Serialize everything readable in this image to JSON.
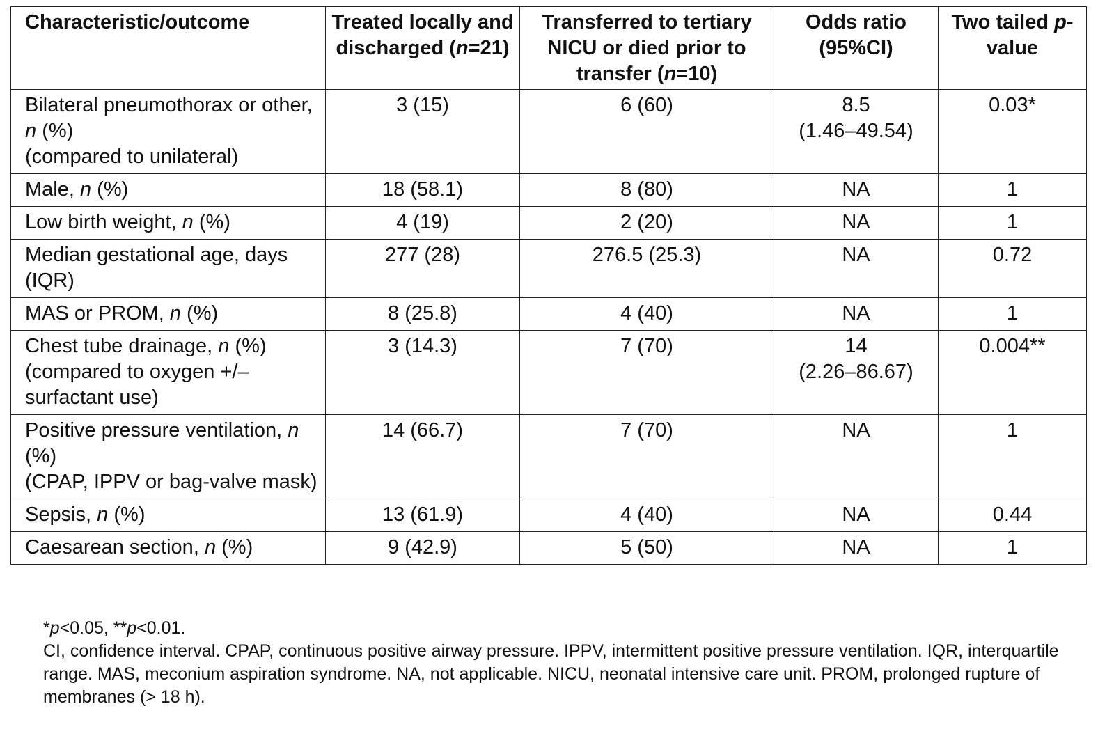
{
  "table": {
    "header": [
      [
        "Characteristic/outcome"
      ],
      [
        "Treated locally and discharged (",
        {
          "text": "n",
          "italic": true
        },
        "=21)"
      ],
      [
        "Transferred to tertiary NICU or died prior to transfer (",
        {
          "text": "n",
          "italic": true
        },
        "=10)"
      ],
      [
        "Odds ratio (95%CI)"
      ],
      [
        "Two tailed ",
        {
          "text": "p",
          "italic": true
        },
        "-value"
      ]
    ],
    "rows": [
      [
        [
          "Bilateral pneumothorax or other, ",
          {
            "text": "n",
            "italic": true
          },
          " (%)\n(compared to unilateral)"
        ],
        [
          "3 (15)"
        ],
        [
          "6 (60)"
        ],
        [
          "8.5\n(1.46–49.54)"
        ],
        [
          "0.03*"
        ]
      ],
      [
        [
          "Male, ",
          {
            "text": "n",
            "italic": true
          },
          " (%)"
        ],
        [
          "18 (58.1)"
        ],
        [
          "8 (80)"
        ],
        [
          "NA"
        ],
        [
          "1"
        ]
      ],
      [
        [
          "Low birth weight, ",
          {
            "text": "n",
            "italic": true
          },
          " (%)"
        ],
        [
          "4 (19)"
        ],
        [
          "2 (20)"
        ],
        [
          "NA"
        ],
        [
          "1"
        ]
      ],
      [
        [
          "Median gestational age, days (IQR)"
        ],
        [
          "277 (28)"
        ],
        [
          "276.5 (25.3)"
        ],
        [
          "NA"
        ],
        [
          "0.72"
        ]
      ],
      [
        [
          "MAS or PROM, ",
          {
            "text": "n",
            "italic": true
          },
          " (%)"
        ],
        [
          "8 (25.8)"
        ],
        [
          "4 (40)"
        ],
        [
          "NA"
        ],
        [
          "1"
        ]
      ],
      [
        [
          "Chest tube drainage, ",
          {
            "text": "n",
            "italic": true
          },
          " (%)\n(compared to oxygen +/– surfactant use)"
        ],
        [
          "3 (14.3)"
        ],
        [
          "7 (70)"
        ],
        [
          "14\n(2.26–86.67)"
        ],
        [
          "0.004**"
        ]
      ],
      [
        [
          "Positive pressure ventilation, ",
          {
            "text": "n",
            "italic": true
          },
          " (%)\n(CPAP, IPPV or bag-valve mask)"
        ],
        [
          "14 (66.7)"
        ],
        [
          "7 (70)"
        ],
        [
          "NA"
        ],
        [
          "1"
        ]
      ],
      [
        [
          "Sepsis, ",
          {
            "text": "n",
            "italic": true
          },
          " (%)"
        ],
        [
          "13 (61.9)"
        ],
        [
          "4 (40)"
        ],
        [
          "NA"
        ],
        [
          "0.44"
        ]
      ],
      [
        [
          "Caesarean section, ",
          {
            "text": "n",
            "italic": true
          },
          " (%)"
        ],
        [
          "9 (42.9)"
        ],
        [
          "5 (50)"
        ],
        [
          "NA"
        ],
        [
          "1"
        ]
      ]
    ],
    "footnotes": [
      [
        "*",
        {
          "text": "p",
          "italic": true
        },
        "<0.05, **",
        {
          "text": "p",
          "italic": true
        },
        "<0.01."
      ],
      [
        "CI, confidence interval. CPAP, continuous positive airway pressure. IPPV, intermittent positive pressure ventilation. IQR, interquartile range. MAS, meconium aspiration syndrome. NA, not applicable. NICU, neonatal intensive care unit. PROM, prolonged rupture of membranes (> 18 h)."
      ]
    ]
  }
}
